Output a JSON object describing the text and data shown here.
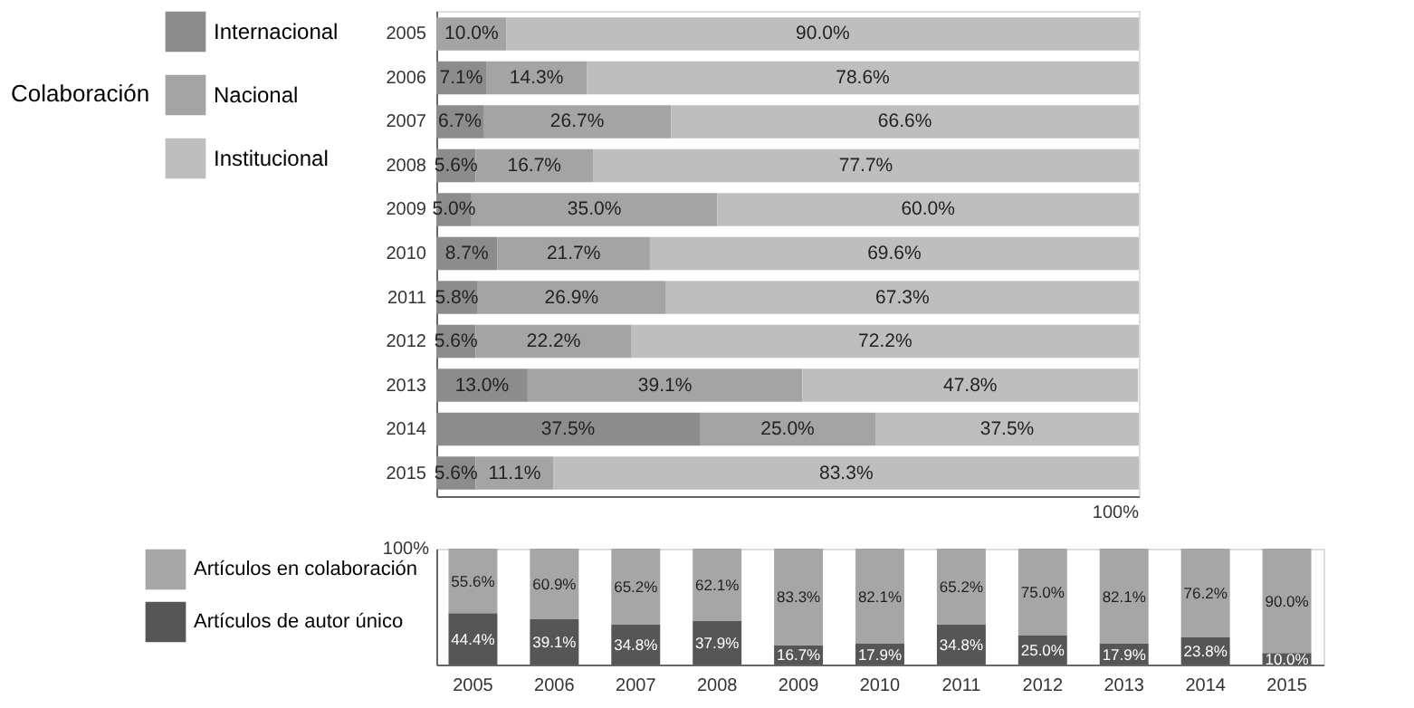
{
  "chart_data": [
    {
      "type": "bar",
      "orientation": "horizontal",
      "stacked": true,
      "legend": "left",
      "legend_title": "Colaboración",
      "annotations": [
        "100%"
      ],
      "categories": [
        "2005",
        "2006",
        "2007",
        "2008",
        "2009",
        "2010",
        "2011",
        "2012",
        "2013",
        "2014",
        "2015"
      ],
      "series": [
        {
          "name": "Internacional",
          "color": "#8c8c8c",
          "values": [
            null,
            7.1,
            6.7,
            5.6,
            5.0,
            8.7,
            5.8,
            5.6,
            13.0,
            37.5,
            5.6
          ],
          "value_labels": [
            null,
            "7.1%",
            "6.7%",
            "5.6%",
            "5.0%",
            "8.7%",
            "5.8%",
            "5.6%",
            "13.0%",
            "37.5%",
            "5.6%"
          ]
        },
        {
          "name": "Nacional",
          "color": "#a4a4a4",
          "values": [
            10.0,
            14.3,
            26.7,
            16.7,
            35.0,
            21.7,
            26.9,
            22.2,
            39.1,
            25.0,
            11.1
          ],
          "value_labels": [
            "10.0%",
            "14.3%",
            "26.7%",
            "16.7%",
            "35.0%",
            "21.7%",
            "26.9%",
            "22.2%",
            "39.1%",
            "25.0%",
            "11.1%"
          ]
        },
        {
          "name": "Institucional",
          "color": "#bebebe",
          "values": [
            90.0,
            78.6,
            66.6,
            77.7,
            60.0,
            69.6,
            67.3,
            72.2,
            47.8,
            37.5,
            83.3
          ],
          "value_labels": [
            "90.0%",
            "78.6%",
            "66.6%",
            "77.7%",
            "60.0%",
            "69.6%",
            "67.3%",
            "72.2%",
            "47.8%",
            "37.5%",
            "83.3%"
          ]
        }
      ]
    },
    {
      "type": "bar",
      "stacked": true,
      "legend": "left",
      "annotations": [
        "100%"
      ],
      "categories": [
        "2005",
        "2006",
        "2007",
        "2008",
        "2009",
        "2010",
        "2011",
        "2012",
        "2013",
        "2014",
        "2015"
      ],
      "series": [
        {
          "name": "Artículos de autor único",
          "color": "#565656",
          "values": [
            44.4,
            39.1,
            34.8,
            37.9,
            16.7,
            17.9,
            34.8,
            25.0,
            17.9,
            23.8,
            10.0
          ],
          "value_labels": [
            "44.4%",
            "39.1%",
            "34.8%",
            "37.9%",
            "16.7%",
            "17.9%",
            "34.8%",
            "25.0%",
            "17.9%",
            "23.8%",
            "10.0%"
          ]
        },
        {
          "name": "Artículos en colaboración",
          "color": "#a6a6a6",
          "values": [
            55.6,
            60.9,
            65.2,
            62.1,
            83.3,
            82.1,
            65.2,
            75.0,
            82.1,
            76.2,
            90.0
          ],
          "value_labels": [
            "55.6%",
            "60.9%",
            "65.2%",
            "62.1%",
            "83.3%",
            "82.1%",
            "65.2%",
            "75.0%",
            "82.1%",
            "76.2%",
            "90.0%"
          ]
        }
      ]
    }
  ]
}
